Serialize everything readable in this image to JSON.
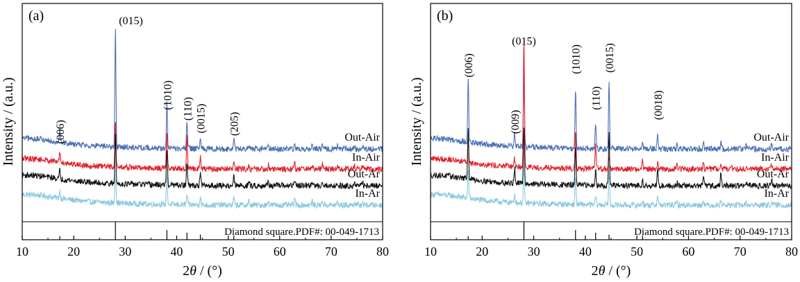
{
  "chart_data": [
    {
      "type": "line",
      "panel_label": "(a)",
      "xlabel_prefix": "2",
      "xlabel_symbol": "θ",
      "xlabel_suffix": " / (°)",
      "ylabel": "Intensity / (a.u.)",
      "xlim": [
        10,
        80
      ],
      "xticks": [
        10,
        20,
        30,
        40,
        50,
        60,
        70,
        80
      ],
      "y_axis_values_shown": false,
      "reference": {
        "label": "Diamond square.PDF#: 00-049-1713",
        "peaks": [
          {
            "x": 28.1,
            "h": 1.0
          },
          {
            "x": 38.1,
            "h": 0.45
          },
          {
            "x": 42.0,
            "h": 0.28
          },
          {
            "x": 44.6,
            "h": 0.15
          },
          {
            "x": 51.1,
            "h": 0.1
          },
          {
            "x": 17.3,
            "h": 0.06
          }
        ]
      },
      "series": [
        {
          "name": "Out-Air",
          "color": "#4a6fb5",
          "offset": 3,
          "noise": 0.55,
          "peaks": [
            [
              17.3,
              2.2
            ],
            [
              28.1,
              18.0
            ],
            [
              38.1,
              6.8
            ],
            [
              42.0,
              4.2
            ],
            [
              44.6,
              1.7
            ],
            [
              51.1,
              1.6
            ],
            [
              54.0,
              0.6
            ],
            [
              57.8,
              0.8
            ],
            [
              62.9,
              1.1
            ],
            [
              66.3,
              0.6
            ],
            [
              68.3,
              0.8
            ],
            [
              71.2,
              0.5
            ],
            [
              74.5,
              0.5
            ],
            [
              76.1,
              0.6
            ]
          ]
        },
        {
          "name": "In-Air",
          "color": "#e0202a",
          "offset": 2,
          "noise": 0.55,
          "peaks": [
            [
              17.3,
              1.7
            ],
            [
              28.1,
              7.2
            ],
            [
              38.1,
              5.9
            ],
            [
              42.0,
              5.0
            ],
            [
              44.6,
              1.7
            ],
            [
              51.1,
              1.4
            ],
            [
              54.0,
              0.6
            ],
            [
              57.8,
              0.8
            ],
            [
              62.9,
              1.1
            ],
            [
              66.3,
              0.6
            ],
            [
              68.3,
              0.8
            ],
            [
              71.2,
              0.4
            ],
            [
              74.5,
              0.5
            ],
            [
              76.1,
              0.6
            ]
          ]
        },
        {
          "name": "Out-Ar",
          "color": "#111111",
          "offset": 1,
          "noise": 0.55,
          "peaks": [
            [
              17.3,
              1.3
            ],
            [
              28.1,
              7.5
            ],
            [
              38.1,
              5.8
            ],
            [
              42.0,
              3.6
            ],
            [
              44.6,
              1.9
            ],
            [
              51.1,
              1.4
            ],
            [
              54.0,
              0.6
            ],
            [
              57.8,
              0.8
            ],
            [
              62.9,
              1.0
            ],
            [
              66.3,
              0.6
            ],
            [
              68.3,
              0.8
            ],
            [
              71.2,
              0.4
            ],
            [
              74.5,
              0.5
            ],
            [
              76.1,
              0.6
            ]
          ]
        },
        {
          "name": "In-Ar",
          "color": "#8ac8df",
          "offset": 0,
          "noise": 0.55,
          "peaks": [
            [
              17.3,
              1.1
            ],
            [
              28.1,
              6.0
            ],
            [
              38.1,
              4.9
            ],
            [
              42.0,
              1.5
            ],
            [
              44.6,
              1.4
            ],
            [
              51.1,
              1.2
            ],
            [
              54.0,
              0.6
            ],
            [
              57.8,
              0.8
            ],
            [
              62.9,
              1.1
            ],
            [
              66.3,
              0.6
            ],
            [
              68.3,
              0.8
            ],
            [
              71.2,
              0.4
            ],
            [
              74.5,
              0.5
            ],
            [
              76.1,
              0.6
            ]
          ]
        }
      ],
      "peak_labels": [
        {
          "text": "(006)",
          "x": 17.3,
          "rotated": true,
          "level": 9.2
        },
        {
          "text": "(015)",
          "x": 28.1,
          "rotated": false,
          "level": 27.2
        },
        {
          "text": "(1010)",
          "x": 38.1,
          "rotated": true,
          "level": 14.3
        },
        {
          "text": "(110)",
          "x": 42.0,
          "rotated": true,
          "level": 12.7
        },
        {
          "text": "(0015)",
          "x": 44.6,
          "rotated": true,
          "level": 10.8
        },
        {
          "text": "(205)",
          "x": 51.1,
          "rotated": true,
          "level": 10.4
        }
      ]
    },
    {
      "type": "line",
      "panel_label": "(b)",
      "xlabel_prefix": "2",
      "xlabel_symbol": "θ",
      "xlabel_suffix": " / (°)",
      "ylabel": "Intensity / (a.u.)",
      "xlim": [
        10,
        80
      ],
      "xticks": [
        10,
        20,
        30,
        40,
        50,
        60,
        70,
        80
      ],
      "y_axis_values_shown": false,
      "reference": {
        "label": "Diamond square.PDF#: 00-049-1713",
        "peaks": [
          {
            "x": 28.1,
            "h": 1.0
          },
          {
            "x": 38.1,
            "h": 0.45
          },
          {
            "x": 42.0,
            "h": 0.28
          },
          {
            "x": 44.6,
            "h": 0.15
          },
          {
            "x": 51.1,
            "h": 0.1
          },
          {
            "x": 17.3,
            "h": 0.06
          }
        ]
      },
      "series": [
        {
          "name": "Out-Air",
          "color": "#4a6fb5",
          "offset": 3,
          "noise": 0.55,
          "peaks": [
            [
              17.3,
              10.0
            ],
            [
              26.3,
              2.0
            ],
            [
              28.1,
              12.5
            ],
            [
              38.1,
              9.0
            ],
            [
              42.0,
              3.9
            ],
            [
              44.6,
              10.2
            ],
            [
              51.1,
              0.9
            ],
            [
              54.0,
              2.5
            ],
            [
              57.8,
              0.6
            ],
            [
              62.9,
              1.0
            ],
            [
              66.3,
              1.1
            ],
            [
              71.2,
              0.5
            ],
            [
              76.1,
              0.8
            ]
          ]
        },
        {
          "name": "In-Air",
          "color": "#e0202a",
          "offset": 2,
          "noise": 0.55,
          "peaks": [
            [
              17.3,
              3.6
            ],
            [
              26.3,
              1.2
            ],
            [
              28.1,
              19.5
            ],
            [
              38.1,
              5.8
            ],
            [
              42.0,
              3.8
            ],
            [
              44.6,
              2.0
            ],
            [
              51.1,
              1.6
            ],
            [
              54.0,
              0.8
            ],
            [
              57.8,
              1.0
            ],
            [
              62.9,
              1.4
            ],
            [
              66.3,
              0.6
            ],
            [
              68.3,
              0.8
            ],
            [
              71.2,
              0.4
            ],
            [
              76.1,
              0.6
            ]
          ]
        },
        {
          "name": "Out-Ar",
          "color": "#111111",
          "offset": 1,
          "noise": 0.55,
          "peaks": [
            [
              17.3,
              7.5
            ],
            [
              26.3,
              2.3
            ],
            [
              28.1,
              9.0
            ],
            [
              38.1,
              6.0
            ],
            [
              42.0,
              2.8
            ],
            [
              44.6,
              7.8
            ],
            [
              51.1,
              1.0
            ],
            [
              54.0,
              2.6
            ],
            [
              57.8,
              0.6
            ],
            [
              62.9,
              1.4
            ],
            [
              66.3,
              2.0
            ],
            [
              71.2,
              0.5
            ],
            [
              76.1,
              1.1
            ]
          ]
        },
        {
          "name": "In-Ar",
          "color": "#8ac8df",
          "offset": 0,
          "noise": 0.55,
          "peaks": [
            [
              17.3,
              4.2
            ],
            [
              26.3,
              1.4
            ],
            [
              28.1,
              5.6
            ],
            [
              38.1,
              4.3
            ],
            [
              42.0,
              1.3
            ],
            [
              44.6,
              5.2
            ],
            [
              51.1,
              0.8
            ],
            [
              54.0,
              1.6
            ],
            [
              57.8,
              0.5
            ],
            [
              62.9,
              0.9
            ],
            [
              66.3,
              1.0
            ],
            [
              71.2,
              0.4
            ],
            [
              76.1,
              0.6
            ]
          ]
        }
      ],
      "peak_labels": [
        {
          "text": "(006)",
          "x": 17.3,
          "rotated": true,
          "level": 19.2
        },
        {
          "text": "(009)",
          "x": 26.3,
          "rotated": true,
          "level": 10.7
        },
        {
          "text": "(015)",
          "x": 28.1,
          "rotated": false,
          "level": 24.1
        },
        {
          "text": "(1010)",
          "x": 38.1,
          "rotated": true,
          "level": 19.7
        },
        {
          "text": "(110)",
          "x": 42.0,
          "rotated": true,
          "level": 14.3
        },
        {
          "text": "(0015)",
          "x": 44.6,
          "rotated": true,
          "level": 19.9
        },
        {
          "text": "(0018)",
          "x": 54.0,
          "rotated": true,
          "level": 12.8
        }
      ]
    }
  ]
}
